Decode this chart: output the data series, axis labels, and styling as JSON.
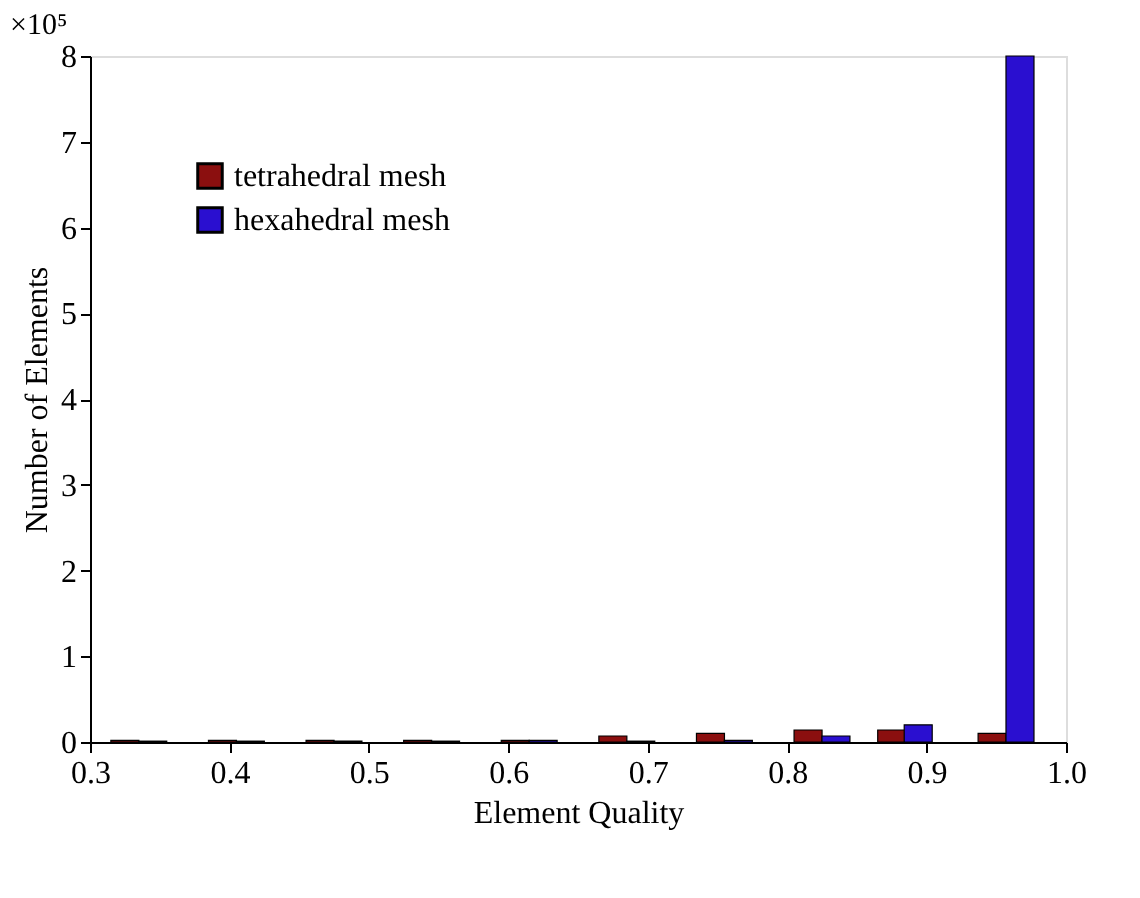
{
  "chart_data": {
    "type": "bar",
    "xlabel": "Element Quality",
    "ylabel": "Number of Elements",
    "annotations": [
      "×10⁵"
    ],
    "xlim": [
      0.3,
      1.0
    ],
    "xticks": [
      0.3,
      0.4,
      0.5,
      0.6,
      0.7,
      0.8,
      0.9,
      {
        "value": 1.0,
        "label": "1.0"
      }
    ],
    "ylim": [
      0,
      8
    ],
    "yticks": [
      0,
      1,
      2,
      3,
      4,
      5,
      6,
      7,
      8
    ],
    "grid": false,
    "legend": "top left",
    "series": [
      {
        "name": "tetrahedral mesh",
        "color": "#8b0f0f",
        "x": [
          0.325,
          0.395,
          0.465,
          0.535,
          0.605,
          0.675,
          0.745,
          0.815,
          0.875,
          0.947
        ],
        "values": [
          0.02,
          0.02,
          0.02,
          0.02,
          0.02,
          0.07,
          0.1,
          0.14,
          0.14,
          0.1
        ]
      },
      {
        "name": "hexahedral mesh",
        "color": "#2a0fd0",
        "x": [
          0.345,
          0.415,
          0.485,
          0.555,
          0.625,
          0.695,
          0.765,
          0.835,
          0.894,
          0.967
        ],
        "values": [
          0.01,
          0.01,
          0.01,
          0.01,
          0.02,
          0.01,
          0.02,
          0.07,
          0.2,
          8.0
        ]
      }
    ]
  }
}
